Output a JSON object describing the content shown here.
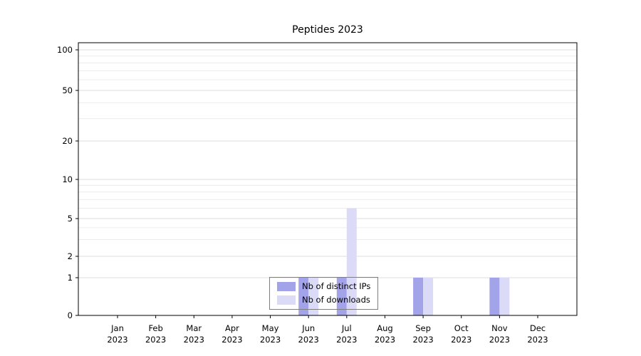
{
  "figure": {
    "title": "Peptides 2023",
    "background": "#ffffff"
  },
  "chart_data": {
    "type": "bar",
    "title": "Peptides 2023",
    "x": [
      "Jan 2023",
      "Feb 2023",
      "Mar 2023",
      "Apr 2023",
      "May 2023",
      "Jun 2023",
      "Jul 2023",
      "Aug 2023",
      "Sep 2023",
      "Oct 2023",
      "Nov 2023",
      "Dec 2023"
    ],
    "x_tick_lines": [
      [
        "Jan",
        "2023"
      ],
      [
        "Feb",
        "2023"
      ],
      [
        "Mar",
        "2023"
      ],
      [
        "Apr",
        "2023"
      ],
      [
        "May",
        "2023"
      ],
      [
        "Jun",
        "2023"
      ],
      [
        "Jul",
        "2023"
      ],
      [
        "Aug",
        "2023"
      ],
      [
        "Sep",
        "2023"
      ],
      [
        "Oct",
        "2023"
      ],
      [
        "Nov",
        "2023"
      ],
      [
        "Dec",
        "2023"
      ]
    ],
    "series": [
      {
        "name": "Nb of distinct IPs",
        "color": "#a3a3e9",
        "values": [
          0,
          0,
          0,
          0,
          0,
          1,
          1,
          0,
          1,
          0,
          1,
          0
        ]
      },
      {
        "name": "Nb of downloads",
        "color": "#dbdbf8",
        "values": [
          0,
          0,
          0,
          0,
          0,
          1,
          6,
          0,
          1,
          0,
          1,
          0
        ]
      }
    ],
    "yticks": [
      {
        "value": 0,
        "label": "0"
      },
      {
        "value": 1,
        "label": "1"
      },
      {
        "value": 2,
        "label": "2"
      },
      {
        "value": 5,
        "label": "5"
      },
      {
        "value": 10,
        "label": "10"
      },
      {
        "value": 20,
        "label": "20"
      },
      {
        "value": 50,
        "label": "50"
      },
      {
        "value": 100,
        "label": "100"
      }
    ],
    "gridlines": [
      1,
      2,
      3,
      4,
      5,
      6,
      7,
      8,
      9,
      10,
      20,
      30,
      40,
      50,
      60,
      70,
      80,
      90,
      100
    ],
    "ylim": [
      0,
      100
    ],
    "yscale": "log-like (0,1,2,5,10,20,50,100)",
    "grid": "horizontal",
    "legend": {
      "position": "lower center",
      "entries": [
        "Nb of distinct IPs",
        "Nb of downloads"
      ]
    }
  },
  "colors": {
    "distinct_ips": "#a3a3e9",
    "downloads": "#dbdbf8",
    "gridline_minor": "#ececec",
    "gridline_major": "#dedede",
    "axis": "#000000"
  }
}
